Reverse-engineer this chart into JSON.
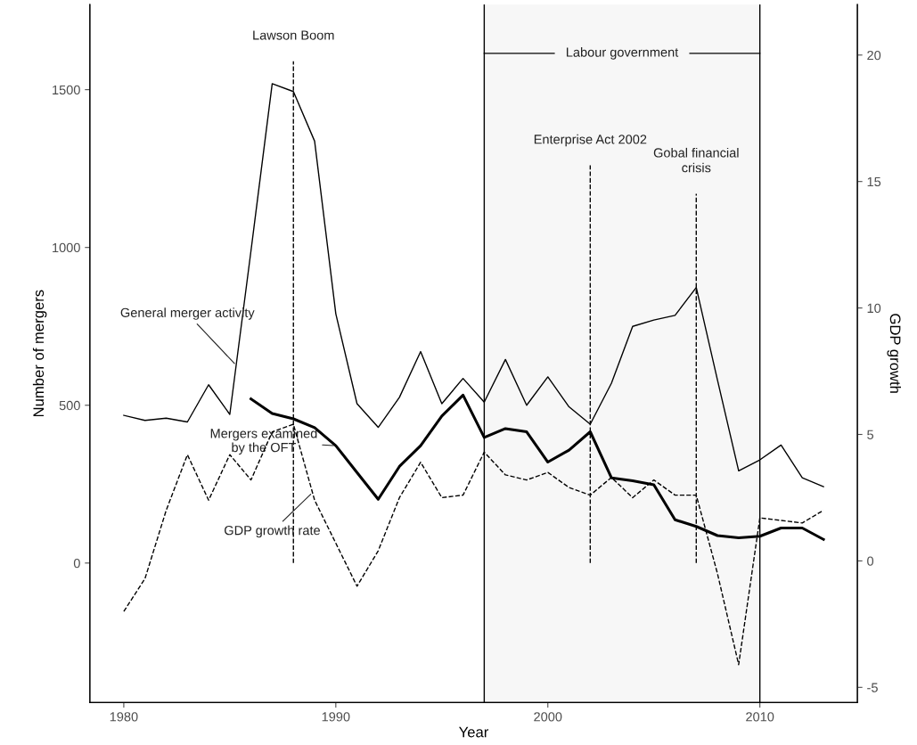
{
  "chart_data": {
    "type": "line",
    "xlabel": "Year",
    "ylabel": "Number of mergers",
    "y2label": "GDP growth",
    "x": [
      1980,
      1981,
      1982,
      1983,
      1984,
      1985,
      1986,
      1987,
      1988,
      1989,
      1990,
      1991,
      1992,
      1993,
      1994,
      1995,
      1996,
      1997,
      1998,
      1999,
      2000,
      2001,
      2002,
      2003,
      2004,
      2005,
      2006,
      2007,
      2008,
      2009,
      2010,
      2011,
      2012,
      2013
    ],
    "series": [
      {
        "name": "General merger activity",
        "color": "#000000",
        "line_style": "solid",
        "values": [
          468,
          452,
          459,
          447,
          565,
          471,
          990,
          1519,
          1494,
          1337,
          790,
          505,
          430,
          525,
          670,
          505,
          585,
          510,
          645,
          500,
          590,
          495,
          440,
          570,
          750,
          770,
          785,
          873,
          580,
          292,
          327,
          374,
          270,
          242
        ]
      },
      {
        "name": "Mergers examined by the OFT",
        "color": "#000000",
        "line_style": "solid",
        "values": [
          null,
          null,
          null,
          null,
          null,
          null,
          520,
          474,
          457,
          429,
          372,
          287,
          202,
          306,
          372,
          466,
          532,
          398,
          426,
          416,
          320,
          358,
          416,
          270,
          261,
          248,
          137,
          116,
          87,
          80,
          85,
          111,
          111,
          75
        ]
      },
      {
        "name": "GDP growth rate",
        "color": "#000000",
        "line_style": "dashed",
        "axis": "y2",
        "values": [
          -2.0,
          -0.7,
          2.0,
          4.2,
          2.4,
          4.2,
          3.2,
          5.1,
          5.4,
          2.4,
          0.7,
          -1.0,
          0.4,
          2.5,
          3.9,
          2.5,
          2.6,
          4.3,
          3.4,
          3.2,
          3.5,
          2.9,
          2.6,
          3.3,
          2.5,
          3.2,
          2.6,
          2.6,
          -0.5,
          -4.1,
          1.7,
          1.6,
          1.5,
          2.0
        ]
      }
    ],
    "xlim": [
      1978.4,
      2014.6
    ],
    "xticks": [
      1980,
      1990,
      2000,
      2010
    ],
    "ylim": [
      -442,
      1770
    ],
    "yticks": [
      0,
      500,
      1000,
      1500
    ],
    "y2lim": [
      -5.6,
      22
    ],
    "y2ticks": [
      -5,
      0,
      5,
      10,
      15,
      20
    ],
    "ref_lines": [
      {
        "axis": "x",
        "value": 1988,
        "label": "Lawson Boom",
        "line_style": "dashed"
      },
      {
        "axis": "x",
        "value": 2002,
        "label": "Enterprise Act 2002",
        "line_style": "dashed"
      },
      {
        "axis": "x",
        "value": 2007,
        "label": "Gobal financial\ncrisis",
        "line_style": "dashed"
      },
      {
        "axis": "x",
        "value": 1997,
        "line_style": "solid"
      },
      {
        "axis": "x",
        "value": 2010,
        "line_style": "solid"
      }
    ],
    "bands": [
      {
        "axis": "x",
        "from": 1997,
        "to": 2010,
        "label": "Labour government",
        "color": "#f7f7f7"
      }
    ],
    "grid": false,
    "legend": false
  }
}
